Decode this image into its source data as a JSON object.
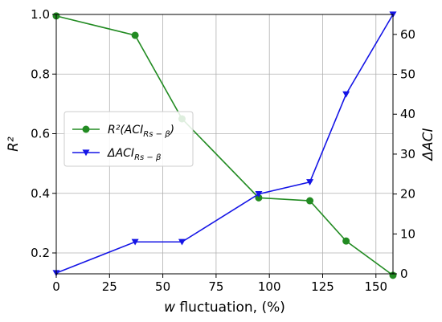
{
  "chart_data": {
    "type": "line",
    "xlabel": {
      "italic": "w",
      "rest": " fluctuation, (%)"
    },
    "ylabel_left": "R²",
    "ylabel_right": "ΔACI",
    "x_ticks": [
      "0",
      "25",
      "50",
      "75",
      "100",
      "125",
      "150"
    ],
    "y_left_ticks": [
      "0.2",
      "0.4",
      "0.6",
      "0.8",
      "1.0"
    ],
    "y_right_ticks": [
      "0",
      "10",
      "20",
      "30",
      "40",
      "50",
      "60"
    ],
    "xlim": [
      0,
      158
    ],
    "ylim_left": [
      0.13,
      1.0
    ],
    "ylim_right": [
      0,
      65
    ],
    "grid": true,
    "legend_position": "center-left",
    "series": [
      {
        "name_main": "R²(ACI",
        "name_sub": "Rs − β",
        "name_end": ")",
        "axis": "left",
        "color": "#228B22",
        "marker": "circle",
        "x": [
          0,
          37,
          59,
          95,
          119,
          136,
          158
        ],
        "y": [
          0.995,
          0.93,
          0.65,
          0.385,
          0.375,
          0.24,
          0.125
        ]
      },
      {
        "name_main": "ΔACI",
        "name_sub": "Rs − β",
        "name_end": "",
        "axis": "right",
        "color": "#1515E6",
        "marker": "triangle-down",
        "x": [
          0,
          37,
          59,
          95,
          119,
          136,
          158
        ],
        "y": [
          0.2,
          8,
          8,
          20,
          23,
          45,
          65
        ]
      }
    ]
  }
}
